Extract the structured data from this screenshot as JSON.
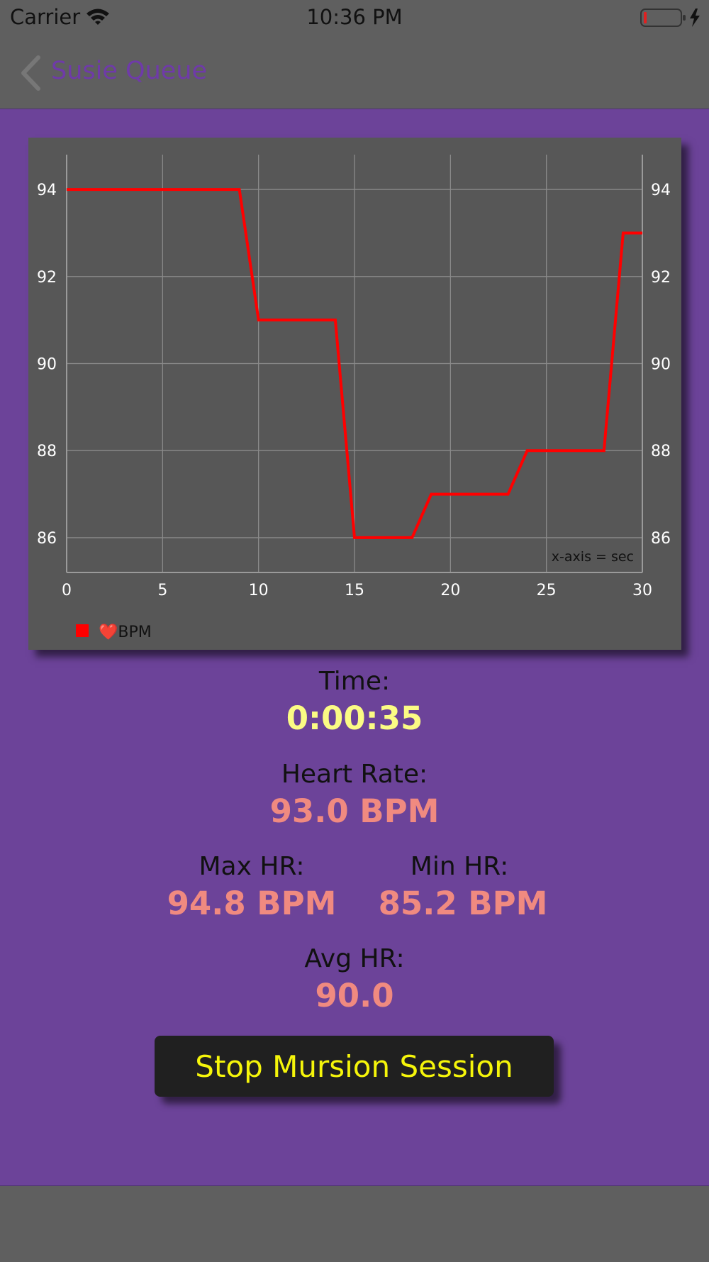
{
  "status_bar": {
    "carrier": "Carrier",
    "time": "10:36 PM"
  },
  "nav": {
    "back_label": "Susie Queue"
  },
  "chart_data": {
    "type": "line",
    "x": [
      0,
      9,
      10,
      14,
      15,
      18,
      19,
      23,
      24,
      28,
      29,
      30
    ],
    "series": [
      {
        "name": "BPM",
        "color": "#ff0000",
        "values": [
          94,
          94,
          91,
          91,
          86,
          86,
          87,
          87,
          88,
          88,
          93,
          93
        ]
      }
    ],
    "xlim": [
      0,
      30
    ],
    "ylim": [
      85.2,
      94.8
    ],
    "x_ticks": [
      0,
      5,
      10,
      15,
      20,
      25,
      30
    ],
    "y_ticks": [
      86,
      88,
      90,
      92,
      94
    ],
    "annotation": "x-axis = sec",
    "legend_label": "❤️BPM",
    "legend_placement": "bottom-left",
    "grid": true,
    "background": "#575757",
    "grid_color": "#8a8a8a"
  },
  "stats": {
    "time_label": "Time:",
    "time_value": "0:00:35",
    "hr_label": "Heart Rate:",
    "hr_value": "93.0 BPM",
    "max_label": "Max HR:",
    "max_value": "94.8 BPM",
    "min_label": "Min HR:",
    "min_value": "85.2 BPM",
    "avg_label": "Avg HR:",
    "avg_value": "90.0"
  },
  "actions": {
    "stop_label": "Stop Mursion Session"
  },
  "colors": {
    "background": "#6c4399",
    "bars": "#5f5f5f",
    "value_salmon": "#f08a80",
    "value_yellow": "#fbfb84",
    "button_text": "#f5f50a"
  }
}
